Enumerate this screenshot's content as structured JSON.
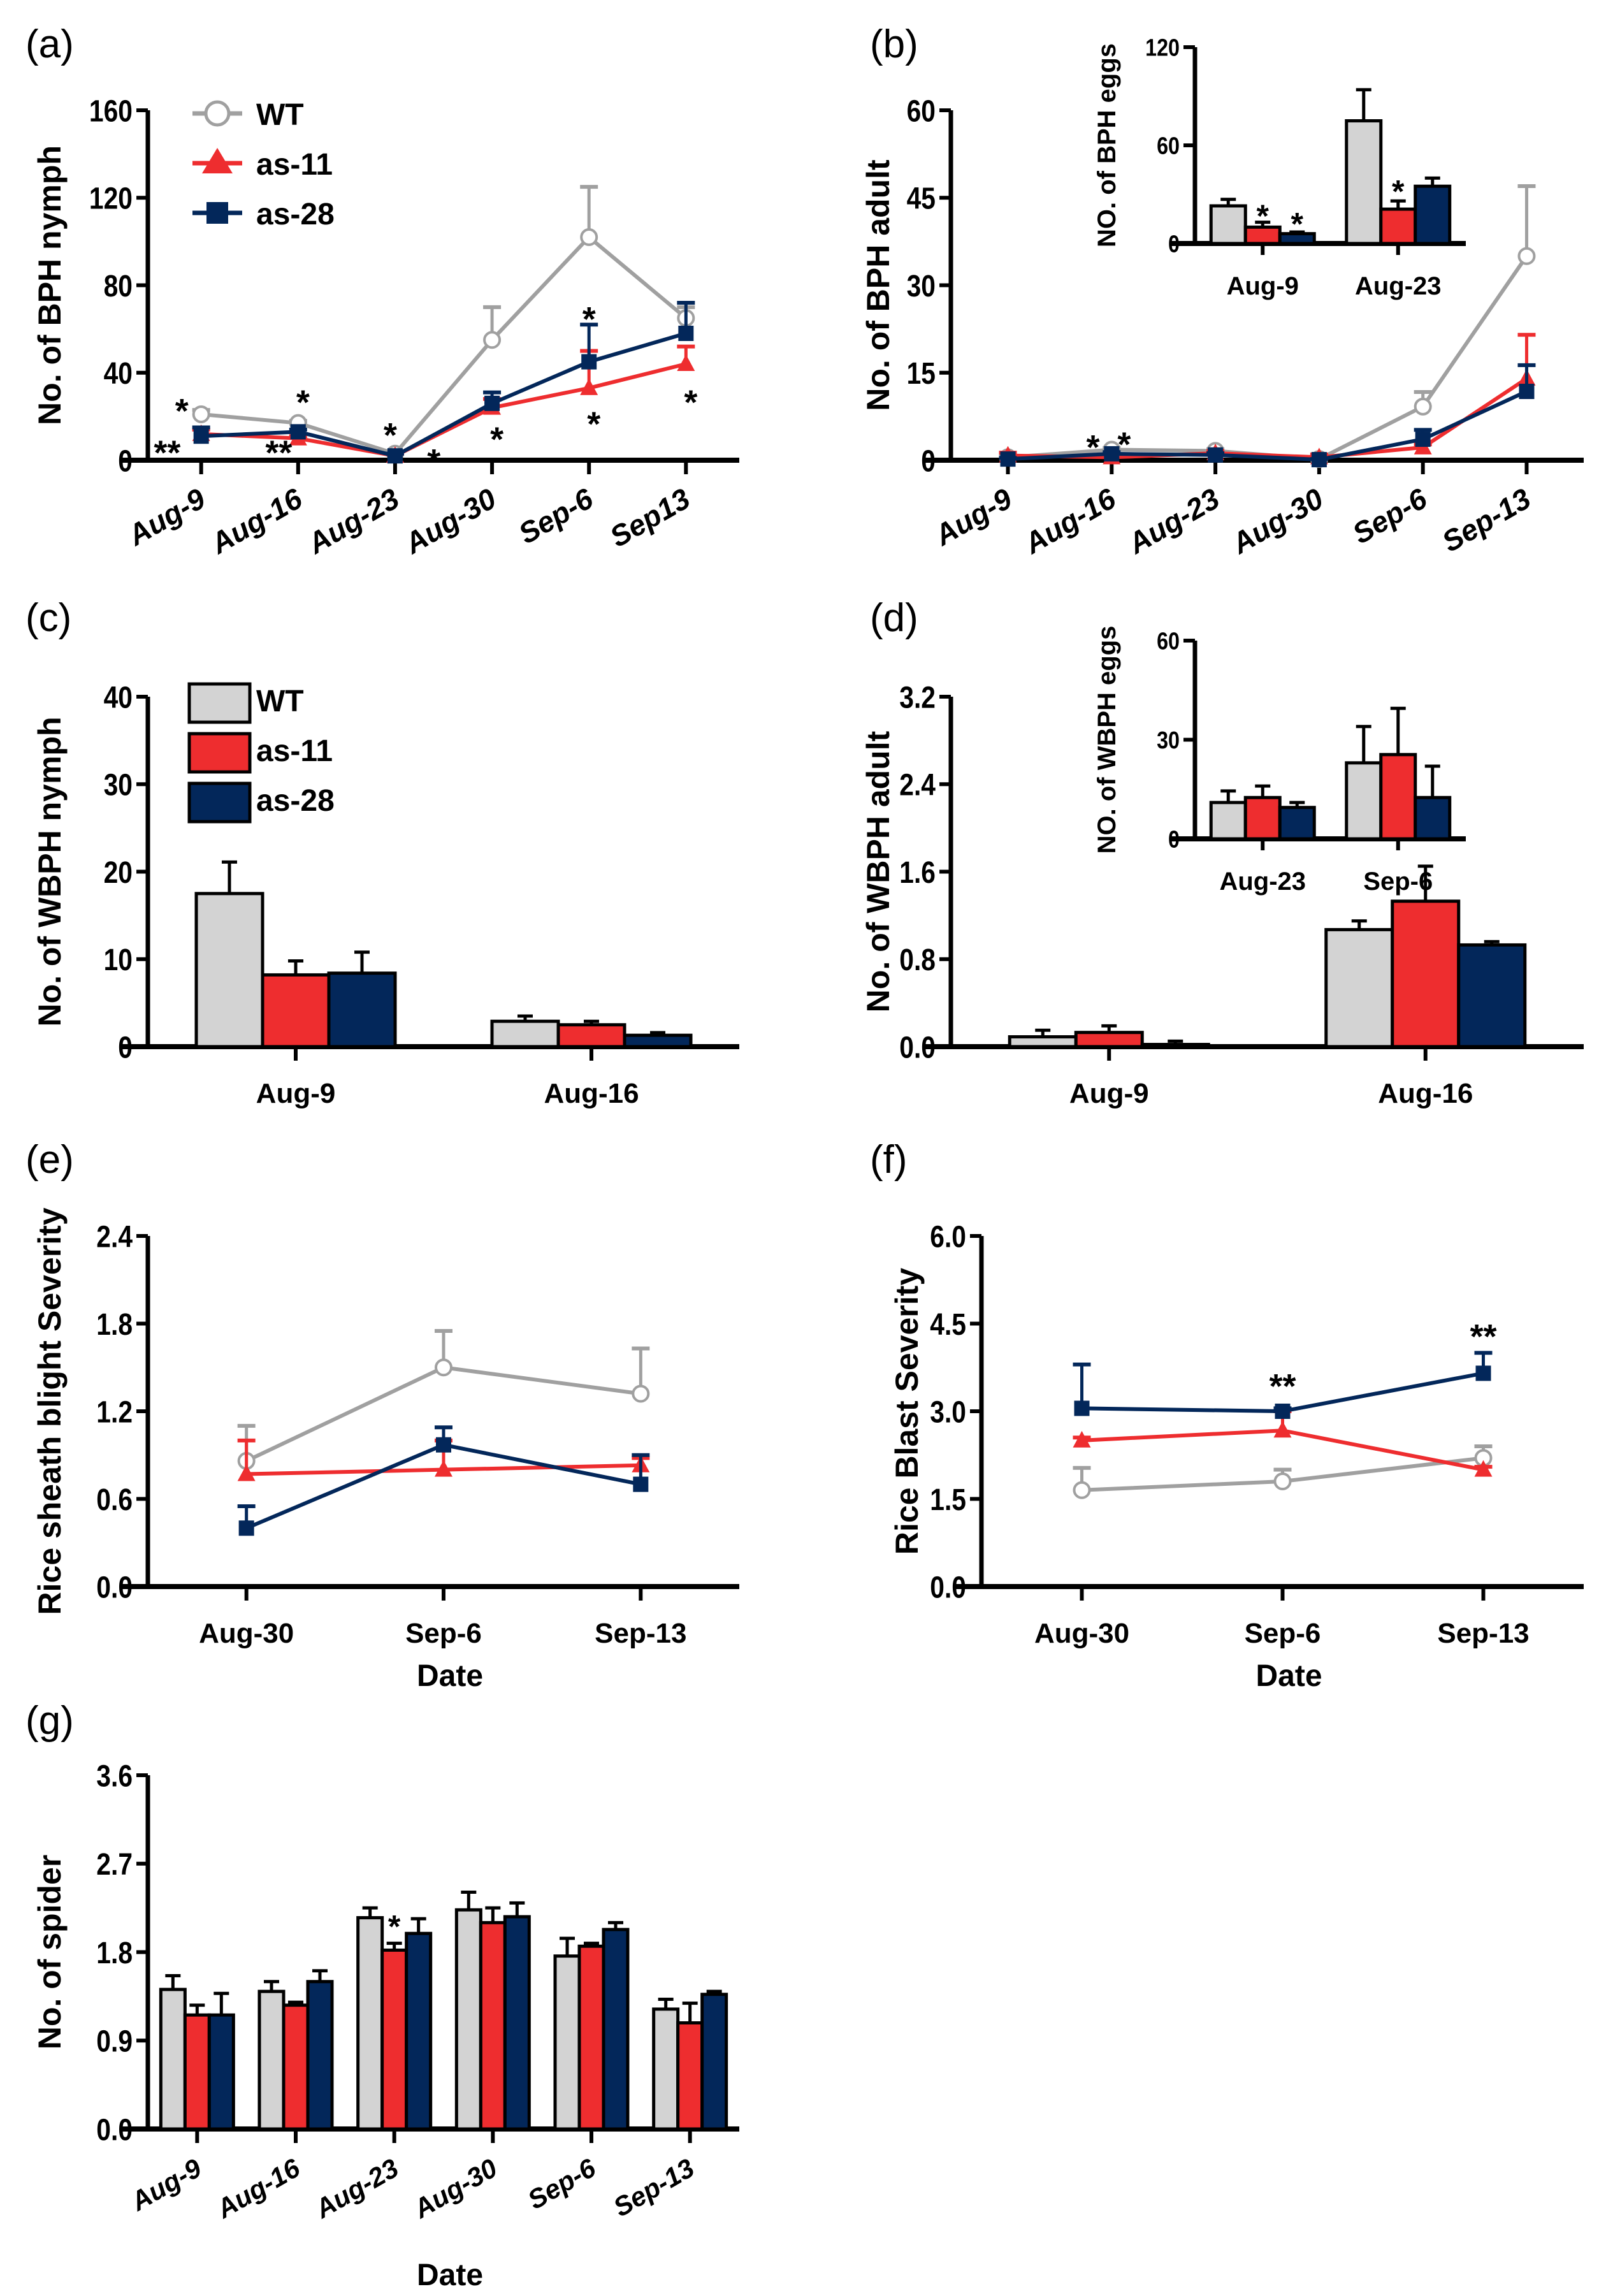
{
  "figure": {
    "colors": {
      "WT": "#a0a0a0",
      "WT_bar": "#d3d3d3",
      "as-11": "#ee2d2f",
      "as-28": "#03275a"
    },
    "series_names": [
      "WT",
      "as-11",
      "as-28"
    ]
  },
  "chart_data": [
    {
      "id": "a",
      "panel_label": "(a)",
      "type": "line",
      "title": "",
      "xlabel": "",
      "ylabel": "No. of BPH nymph",
      "categories": [
        "Aug-9",
        "Aug-16",
        "Aug-23",
        "Aug-30",
        "Sep-6",
        "Sep13"
      ],
      "ylim": [
        0,
        160
      ],
      "yticks": [
        "0",
        "40",
        "80",
        "120",
        "160"
      ],
      "ytick_values": [
        0,
        40,
        80,
        120,
        160
      ],
      "legend": {
        "placement": "top-left",
        "entries": [
          "WT",
          "as-11",
          "as-28"
        ]
      },
      "rotated_xticks": true,
      "series": [
        {
          "name": "WT",
          "values": [
            21,
            17,
            3,
            55,
            102,
            65
          ],
          "errors": [
            2,
            1,
            1,
            15,
            23,
            5
          ]
        },
        {
          "name": "as-11",
          "values": [
            12,
            10,
            2,
            24,
            33,
            44
          ],
          "errors": [
            2,
            1,
            1,
            4,
            17,
            8
          ]
        },
        {
          "name": "as-28",
          "values": [
            11,
            13,
            2,
            26,
            45,
            58
          ],
          "errors": [
            4,
            1,
            1,
            5,
            17,
            14
          ]
        }
      ],
      "annotations": [
        {
          "text": "*",
          "x": 0,
          "y": 23,
          "dx": -0.2
        },
        {
          "text": "**",
          "x": 0,
          "y": 4,
          "dx": -0.35
        },
        {
          "text": "*",
          "x": 1,
          "y": 27,
          "dx": 0.05
        },
        {
          "text": "**",
          "x": 1,
          "y": 4,
          "dx": -0.2
        },
        {
          "text": "*",
          "x": 2,
          "y": 12,
          "dx": -0.05
        },
        {
          "text": "*",
          "x": 2,
          "y": 0,
          "dx": 0.4
        },
        {
          "text": "*",
          "x": 3,
          "y": 10,
          "dx": 0.05
        },
        {
          "text": "*",
          "x": 4,
          "y": 65,
          "dx": 0.0
        },
        {
          "text": "*",
          "x": 4,
          "y": 17,
          "dx": 0.05
        },
        {
          "text": "*",
          "x": 5,
          "y": 27,
          "dx": 0.05
        }
      ]
    },
    {
      "id": "b",
      "panel_label": "(b)",
      "type": "line",
      "title": "",
      "xlabel": "",
      "ylabel": "No. of BPH adult",
      "categories": [
        "Aug-9",
        "Aug-16",
        "Aug-23",
        "Aug-30",
        "Sep-6",
        "Sep-13"
      ],
      "ylim": [
        0,
        60
      ],
      "yticks": [
        "0",
        "15",
        "30",
        "45",
        "60"
      ],
      "ytick_values": [
        0,
        15,
        30,
        45,
        60
      ],
      "rotated_xticks": true,
      "series": [
        {
          "name": "WT",
          "values": [
            0.5,
            1.8,
            1.6,
            0.2,
            9.2,
            35.0
          ],
          "errors": [
            0.3,
            0.3,
            0.3,
            0.1,
            2.5,
            12.0
          ]
        },
        {
          "name": "as-11",
          "values": [
            0.8,
            0.5,
            1.2,
            0.5,
            2.2,
            14.0
          ],
          "errors": [
            0.5,
            0.2,
            0.4,
            0.5,
            0.5,
            7.5
          ]
        },
        {
          "name": "as-28",
          "values": [
            0.2,
            1.1,
            0.9,
            0.1,
            3.6,
            11.8
          ],
          "errors": [
            0.2,
            0.3,
            0.3,
            0.1,
            1.6,
            4.5
          ]
        }
      ],
      "annotations": [
        {
          "text": "*",
          "x": 1,
          "y": 2.4,
          "dx": -0.18
        },
        {
          "text": "*",
          "x": 1,
          "y": 2.9,
          "dx": 0.12
        }
      ]
    },
    {
      "id": "b-inset",
      "panel_label": "",
      "type": "bar",
      "title": "",
      "xlabel": "",
      "ylabel": "NO. of BPH eggs",
      "categories": [
        "Aug-9",
        "Aug-23"
      ],
      "ylim": [
        0,
        120
      ],
      "yticks": [
        "0",
        "60",
        "120"
      ],
      "ytick_values": [
        0,
        60,
        120
      ],
      "series": [
        {
          "name": "WT",
          "values": [
            23,
            75
          ],
          "errors": [
            4,
            19
          ]
        },
        {
          "name": "as-11",
          "values": [
            10,
            21
          ],
          "errors": [
            3,
            5
          ]
        },
        {
          "name": "as-28",
          "values": [
            6,
            35
          ],
          "errors": [
            1,
            5
          ]
        }
      ],
      "annotations": [
        {
          "text": "*",
          "group": 0,
          "series": 1,
          "y": 18
        },
        {
          "text": "*",
          "group": 0,
          "series": 2,
          "y": 13
        },
        {
          "text": "*",
          "group": 1,
          "series": 1,
          "y": 33
        }
      ]
    },
    {
      "id": "c",
      "panel_label": "(c)",
      "type": "bar",
      "title": "",
      "xlabel": "",
      "ylabel": "No. of WBPH nymph",
      "categories": [
        "Aug-9",
        "Aug-16"
      ],
      "ylim": [
        0,
        40
      ],
      "yticks": [
        "0",
        "10",
        "20",
        "30",
        "40"
      ],
      "ytick_values": [
        0,
        10,
        20,
        30,
        40
      ],
      "legend": {
        "placement": "top-left",
        "entries": [
          "WT",
          "as-11",
          "as-28"
        ]
      },
      "series": [
        {
          "name": "WT",
          "values": [
            17.5,
            2.9
          ],
          "errors": [
            3.6,
            0.6
          ]
        },
        {
          "name": "as-11",
          "values": [
            8.2,
            2.5
          ],
          "errors": [
            1.6,
            0.4
          ]
        },
        {
          "name": "as-28",
          "values": [
            8.4,
            1.3
          ],
          "errors": [
            2.4,
            0.3
          ]
        }
      ]
    },
    {
      "id": "d",
      "panel_label": "(d)",
      "type": "bar",
      "title": "",
      "xlabel": "",
      "ylabel": "No. of WBPH adult",
      "categories": [
        "Aug-9",
        "Aug-16"
      ],
      "ylim": [
        0,
        3.2
      ],
      "yticks": [
        "0.0",
        "0.8",
        "1.6",
        "2.4",
        "3.2"
      ],
      "ytick_values": [
        0,
        0.8,
        1.6,
        2.4,
        3.2
      ],
      "series": [
        {
          "name": "WT",
          "values": [
            0.09,
            1.07
          ],
          "errors": [
            0.06,
            0.08
          ]
        },
        {
          "name": "as-11",
          "values": [
            0.13,
            1.33
          ],
          "errors": [
            0.06,
            0.32
          ]
        },
        {
          "name": "as-28",
          "values": [
            0.02,
            0.93
          ],
          "errors": [
            0.03,
            0.03
          ]
        }
      ]
    },
    {
      "id": "d-inset",
      "panel_label": "",
      "type": "bar",
      "title": "",
      "xlabel": "",
      "ylabel": "NO. of WBPH eggs",
      "categories": [
        "Aug-23",
        "Sep-6"
      ],
      "ylim": [
        0,
        60
      ],
      "yticks": [
        "0",
        "30",
        "60"
      ],
      "ytick_values": [
        0,
        30,
        60
      ],
      "series": [
        {
          "name": "WT",
          "values": [
            11,
            23
          ],
          "errors": [
            3.5,
            11
          ]
        },
        {
          "name": "as-11",
          "values": [
            12.5,
            25.5
          ],
          "errors": [
            3.5,
            14
          ]
        },
        {
          "name": "as-28",
          "values": [
            9.5,
            12.5
          ],
          "errors": [
            1.5,
            9.5
          ]
        }
      ]
    },
    {
      "id": "e",
      "panel_label": "(e)",
      "type": "line",
      "title": "",
      "xlabel": "Date",
      "ylabel": "Rice sheath blight Severity",
      "categories": [
        "Aug-30",
        "Sep-6",
        "Sep-13"
      ],
      "ylim": [
        0,
        2.4
      ],
      "yticks": [
        "0.0",
        "0.6",
        "1.2",
        "1.8",
        "2.4"
      ],
      "ytick_values": [
        0,
        0.6,
        1.2,
        1.8,
        2.4
      ],
      "series": [
        {
          "name": "WT",
          "values": [
            0.86,
            1.5,
            1.32
          ],
          "errors": [
            0.24,
            0.25,
            0.31
          ]
        },
        {
          "name": "as-11",
          "values": [
            0.77,
            0.8,
            0.83
          ],
          "errors": [
            0.23,
            0.2,
            0.05
          ]
        },
        {
          "name": "as-28",
          "values": [
            0.4,
            0.97,
            0.7
          ],
          "errors": [
            0.15,
            0.12,
            0.2
          ]
        }
      ]
    },
    {
      "id": "f",
      "panel_label": "(f)",
      "type": "line",
      "title": "",
      "xlabel": "Date",
      "ylabel": "Rice Blast Severity",
      "categories": [
        "Aug-30",
        "Sep-6",
        "Sep-13"
      ],
      "ylim": [
        0,
        6.0
      ],
      "yticks": [
        "0.0",
        "1.5",
        "3.0",
        "4.5",
        "6.0"
      ],
      "ytick_values": [
        0,
        1.5,
        3.0,
        4.5,
        6.0
      ],
      "series": [
        {
          "name": "WT",
          "values": [
            1.65,
            1.8,
            2.2
          ],
          "errors": [
            0.38,
            0.2,
            0.2
          ]
        },
        {
          "name": "as-11",
          "values": [
            2.5,
            2.67,
            2.0
          ],
          "errors": [
            0.05,
            0.33,
            0.05
          ]
        },
        {
          "name": "as-28",
          "values": [
            3.05,
            3.0,
            3.65
          ],
          "errors": [
            0.75,
            0.05,
            0.35
          ]
        }
      ],
      "annotations": [
        {
          "text": "**",
          "x": 1,
          "y": 3.45,
          "dx": 0.0
        },
        {
          "text": "**",
          "x": 2,
          "y": 4.3,
          "dx": 0.0
        }
      ]
    },
    {
      "id": "g",
      "panel_label": "(g)",
      "type": "bar",
      "title": "",
      "xlabel": "Date",
      "ylabel": "No. of spider",
      "categories": [
        "Aug-9",
        "Aug-16",
        "Aug-23",
        "Aug-30",
        "Sep-6",
        "Sep-13"
      ],
      "ylim": [
        0,
        3.6
      ],
      "yticks": [
        "0.0",
        "0.9",
        "1.8",
        "2.7",
        "3.6"
      ],
      "ytick_values": [
        0,
        0.9,
        1.8,
        2.7,
        3.6
      ],
      "rotated_xticks": true,
      "series": [
        {
          "name": "WT",
          "values": [
            1.42,
            1.4,
            2.15,
            2.23,
            1.76,
            1.22
          ],
          "errors": [
            0.14,
            0.1,
            0.1,
            0.18,
            0.18,
            0.1
          ]
        },
        {
          "name": "as-11",
          "values": [
            1.16,
            1.26,
            1.82,
            2.1,
            1.86,
            1.08
          ],
          "errors": [
            0.1,
            0.03,
            0.07,
            0.15,
            0.03,
            0.2
          ]
        },
        {
          "name": "as-28",
          "values": [
            1.16,
            1.5,
            1.99,
            2.16,
            2.03,
            1.37
          ],
          "errors": [
            0.22,
            0.11,
            0.15,
            0.14,
            0.07,
            0.03
          ]
        }
      ],
      "annotations": [
        {
          "text": "*",
          "group": 2,
          "series": 1,
          "y": 2.08
        }
      ]
    }
  ]
}
